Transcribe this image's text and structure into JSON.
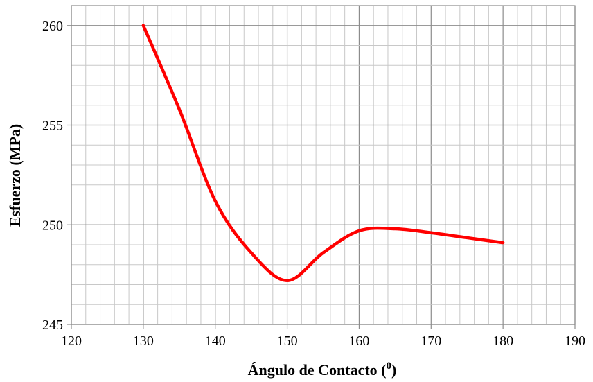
{
  "chart_data": {
    "type": "line",
    "title": "",
    "xlabel": "Ángulo de Contacto (",
    "xlabel_sup": "0",
    "xlabel_close": ")",
    "ylabel": "Esfuerzo (MPa)",
    "xlim": [
      120,
      190
    ],
    "ylim": [
      245,
      261
    ],
    "x_ticks": [
      120,
      130,
      140,
      150,
      160,
      170,
      180,
      190
    ],
    "y_ticks": [
      245,
      250,
      255,
      260
    ],
    "x_minor_step": 2,
    "y_minor_step": 1,
    "grid": true,
    "series": [
      {
        "x": [
          130,
          135,
          140,
          145,
          150,
          155,
          160,
          165,
          170,
          175,
          180
        ],
        "y": [
          260.0,
          255.8,
          251.2,
          248.6,
          247.2,
          248.6,
          249.7,
          249.8,
          249.6,
          249.35,
          249.1
        ],
        "color": "#ff0000"
      }
    ]
  }
}
